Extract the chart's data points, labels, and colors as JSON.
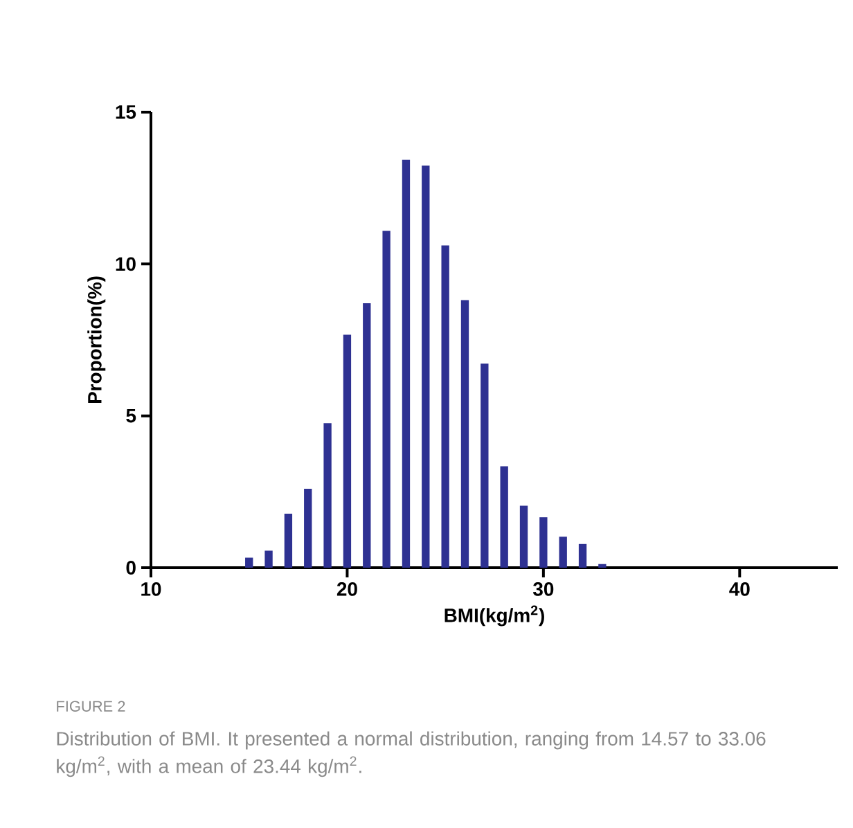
{
  "chart_data": {
    "type": "bar",
    "xlabel": "BMI(kg/m$^{2}$)",
    "ylabel": "Proportion(%)",
    "x": [
      15,
      16,
      17,
      18,
      19,
      20,
      21,
      22,
      23,
      24,
      25,
      26,
      27,
      28,
      29,
      30,
      31,
      32,
      33
    ],
    "values": [
      0.33,
      0.56,
      1.78,
      2.6,
      4.76,
      7.67,
      8.71,
      11.09,
      13.43,
      13.24,
      10.61,
      8.81,
      6.72,
      3.34,
      2.04,
      1.66,
      1.02,
      0.78,
      0.12
    ],
    "color": "#2e3192",
    "xlim": [
      10,
      45
    ],
    "xticks": [
      10,
      20,
      30,
      40
    ],
    "ylim": [
      0,
      15
    ],
    "yticks": [
      0,
      5,
      10,
      15
    ],
    "annotations": [
      "FIGURE 2",
      "Distribution of BMI. It presented a normal distribution, ranging from 14.57 to 33.06 kg/m$^{2}$, with a mean of 23.44 kg/m$^{2}$."
    ]
  }
}
